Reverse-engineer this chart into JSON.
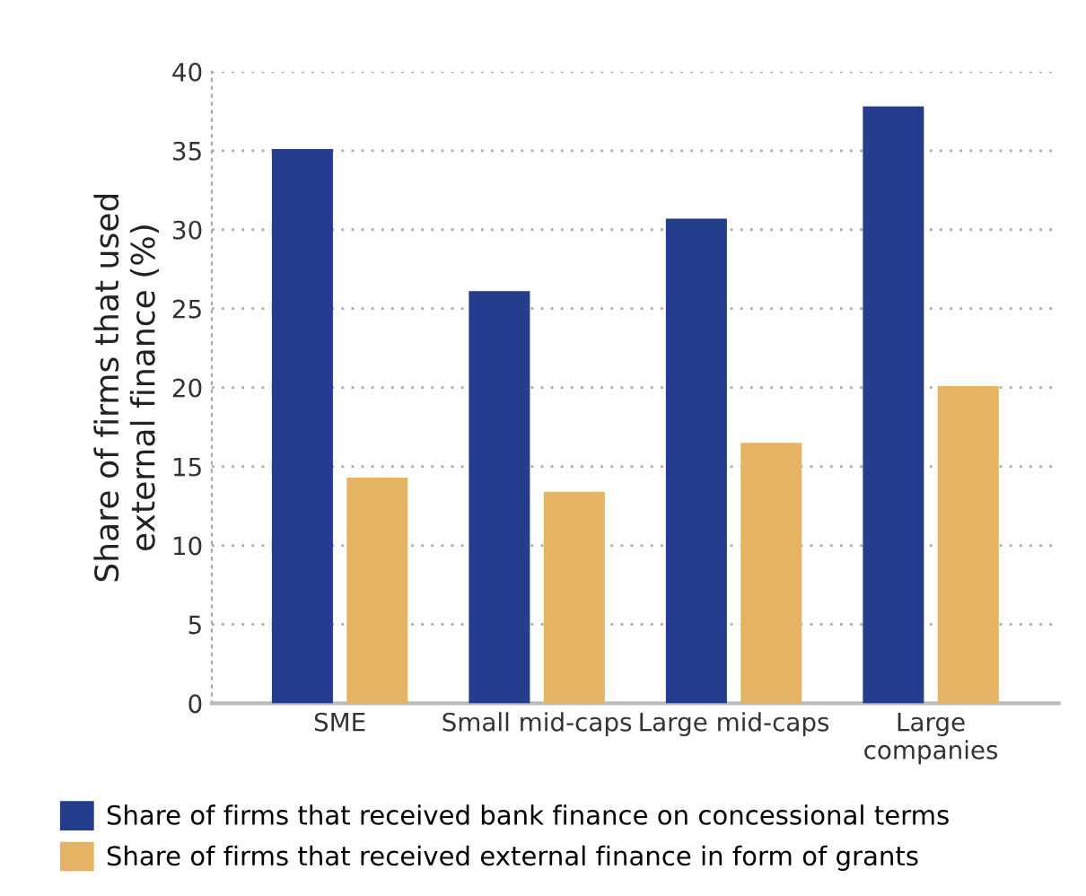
{
  "chart_data": {
    "type": "bar",
    "ylabel": "Share of firms that used\nexternal finance (%)",
    "categories": [
      "SME",
      "Small mid-caps",
      "Large mid-caps",
      "Large\ncompanies"
    ],
    "series": [
      {
        "name": "Share of firms that received bank finance on concessional terms",
        "color": "#243d8c",
        "values": [
          35.1,
          26.1,
          30.7,
          37.8
        ]
      },
      {
        "name": "Share of firms that received external finance in form of grants",
        "color": "#e4b363",
        "values": [
          14.3,
          13.4,
          16.5,
          20.1
        ]
      }
    ],
    "ylim": [
      0,
      40
    ],
    "yticks": [
      0,
      5,
      10,
      15,
      20,
      25,
      30,
      35,
      40
    ],
    "grid": "y",
    "legend": "bottom"
  }
}
